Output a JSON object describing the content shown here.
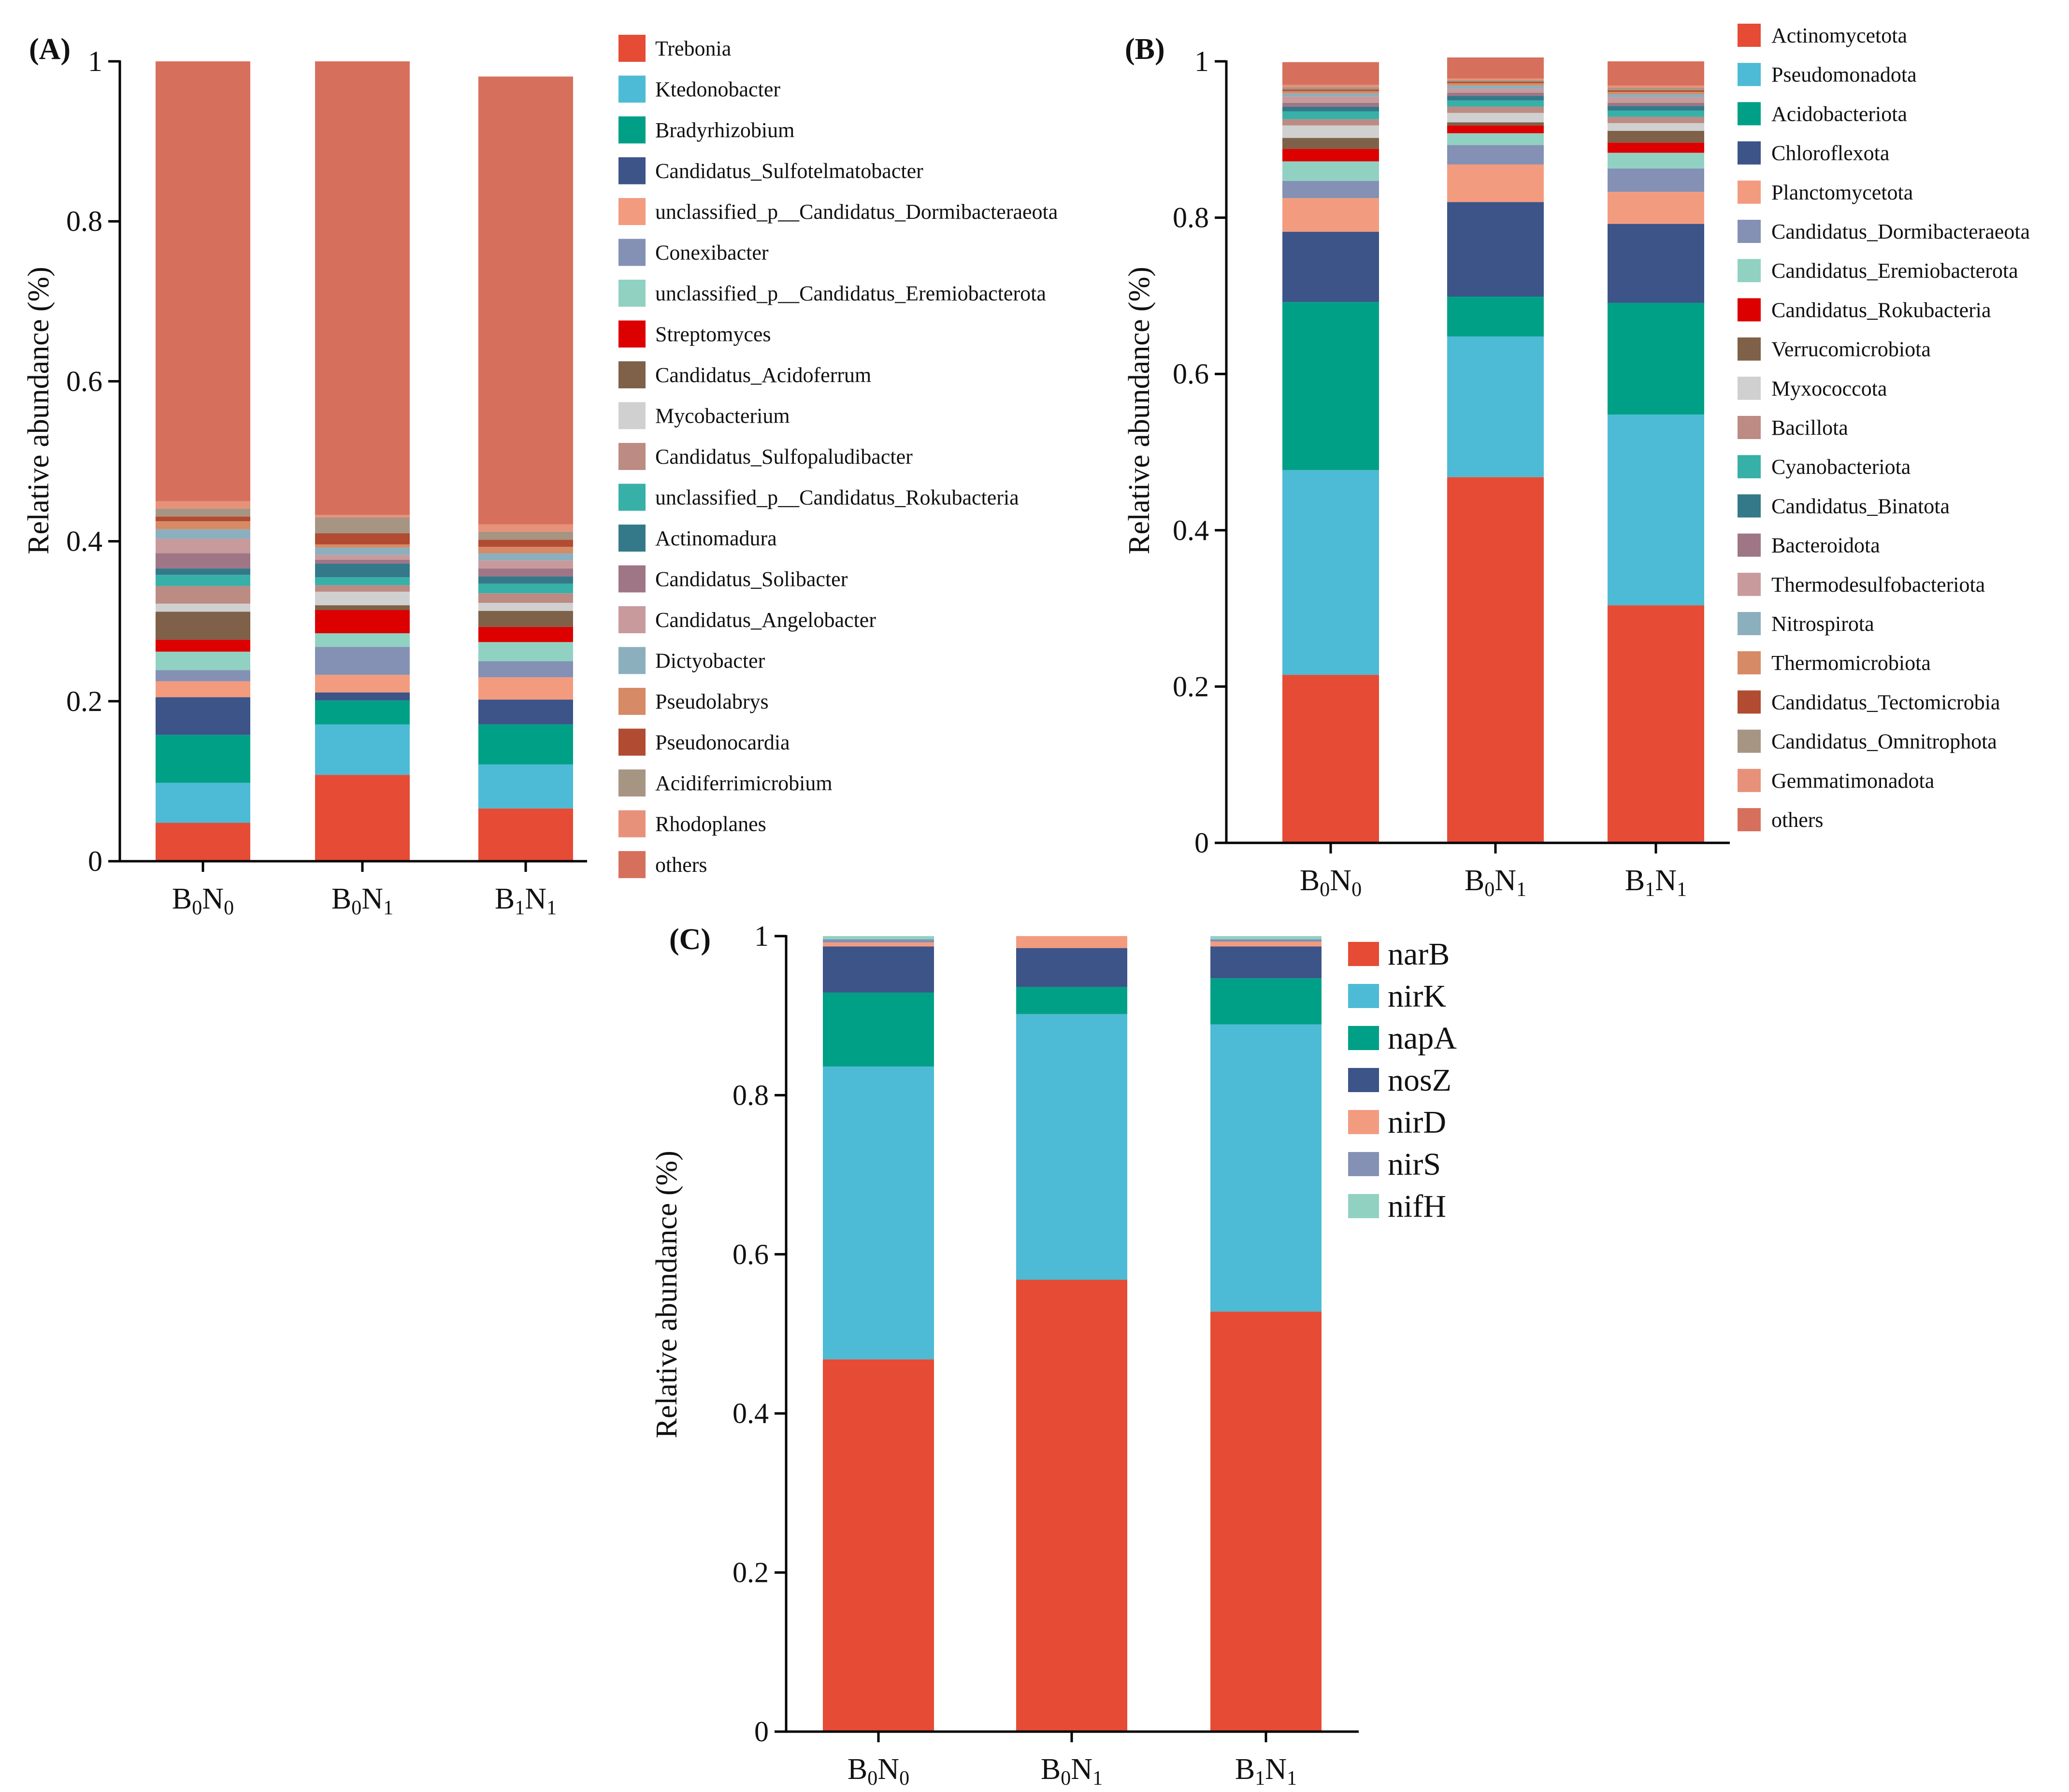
{
  "chart_data": [
    {
      "panel": "(A)",
      "type": "bar",
      "stacked": true,
      "ylabel": "Relative abundance (%)",
      "ylim": [
        0,
        1
      ],
      "yticks": [
        "0",
        "0.2",
        "0.4",
        "0.6",
        "0.8",
        "1"
      ],
      "categories": [
        {
          "base": "B",
          "sub1": "0",
          "mid": "N",
          "sub2": "0"
        },
        {
          "base": "B",
          "sub1": "0",
          "mid": "N",
          "sub2": "1"
        },
        {
          "base": "B",
          "sub1": "1",
          "mid": "N",
          "sub2": "1"
        }
      ],
      "series": [
        {
          "name": "Trebonia",
          "color": "#E64B35",
          "values": [
            0.048,
            0.108,
            0.066
          ]
        },
        {
          "name": "Ktedonobacter",
          "color": "#4DBBD5",
          "values": [
            0.05,
            0.063,
            0.055
          ]
        },
        {
          "name": "Bradyrhizobium",
          "color": "#00A087",
          "values": [
            0.06,
            0.03,
            0.05
          ]
        },
        {
          "name": "Candidatus_Sulfotelmatobacter",
          "color": "#3C5488",
          "values": [
            0.047,
            0.01,
            0.031
          ]
        },
        {
          "name": "unclassified_p__Candidatus_Dormibacteraeota",
          "color": "#F39B7F",
          "values": [
            0.02,
            0.022,
            0.028
          ]
        },
        {
          "name": "Conexibacter",
          "color": "#8491B4",
          "values": [
            0.014,
            0.035,
            0.02
          ]
        },
        {
          "name": "unclassified_p__Candidatus_Eremiobacterota",
          "color": "#91D1C2",
          "values": [
            0.023,
            0.017,
            0.024
          ]
        },
        {
          "name": "Streptomyces",
          "color": "#DC0000",
          "values": [
            0.015,
            0.029,
            0.019
          ]
        },
        {
          "name": "Candidatus_Acidoferrum",
          "color": "#7E6148",
          "values": [
            0.035,
            0.006,
            0.02
          ]
        },
        {
          "name": "Mycobacterium",
          "color": "#D0D0D0",
          "values": [
            0.01,
            0.017,
            0.01
          ]
        },
        {
          "name": "Candidatus_Sulfopaludibacter",
          "color": "#BC8B83",
          "values": [
            0.022,
            0.008,
            0.012
          ]
        },
        {
          "name": "unclassified_p__Candidatus_Rokubacteria",
          "color": "#37B0A8",
          "values": [
            0.014,
            0.01,
            0.012
          ]
        },
        {
          "name": "Actinomadura",
          "color": "#34798A",
          "values": [
            0.008,
            0.017,
            0.009
          ]
        },
        {
          "name": "Candidatus_Solibacter",
          "color": "#9E7686",
          "values": [
            0.019,
            0.005,
            0.01
          ]
        },
        {
          "name": "Candidatus_Angelobacter",
          "color": "#C99A9C",
          "values": [
            0.018,
            0.006,
            0.01
          ]
        },
        {
          "name": "Dictyobacter",
          "color": "#8CAFBE",
          "values": [
            0.012,
            0.009,
            0.009
          ]
        },
        {
          "name": "Pseudolabrys",
          "color": "#D68A65",
          "values": [
            0.01,
            0.004,
            0.008
          ]
        },
        {
          "name": "Pseudonocardia",
          "color": "#B14C32",
          "values": [
            0.006,
            0.014,
            0.009
          ]
        },
        {
          "name": "Acidiferrimicrobium",
          "color": "#A79584",
          "values": [
            0.01,
            0.02,
            0.01
          ]
        },
        {
          "name": "Rhodoplanes",
          "color": "#E8917A",
          "values": [
            0.009,
            0.003,
            0.009
          ]
        },
        {
          "name": "others",
          "color": "#D6705D",
          "values": [
            0.55,
            0.567,
            0.56
          ]
        }
      ]
    },
    {
      "panel": "(B)",
      "type": "bar",
      "stacked": true,
      "ylabel": "Relative abundance (%)",
      "ylim": [
        0,
        1
      ],
      "yticks": [
        "0",
        "0.2",
        "0.4",
        "0.6",
        "0.8",
        "1"
      ],
      "categories": [
        {
          "base": "B",
          "sub1": "0",
          "mid": "N",
          "sub2": "0"
        },
        {
          "base": "B",
          "sub1": "0",
          "mid": "N",
          "sub2": "1"
        },
        {
          "base": "B",
          "sub1": "1",
          "mid": "N",
          "sub2": "1"
        }
      ],
      "series": [
        {
          "name": "Actinomycetota",
          "color": "#E64B35",
          "values": [
            0.215,
            0.468,
            0.304
          ]
        },
        {
          "name": "Pseudomonadota",
          "color": "#4DBBD5",
          "values": [
            0.262,
            0.18,
            0.244
          ]
        },
        {
          "name": "Acidobacteriota",
          "color": "#00A087",
          "values": [
            0.215,
            0.051,
            0.143
          ]
        },
        {
          "name": "Chloroflexota",
          "color": "#3C5488",
          "values": [
            0.09,
            0.121,
            0.101
          ]
        },
        {
          "name": "Planctomycetota",
          "color": "#F39B7F",
          "values": [
            0.043,
            0.048,
            0.041
          ]
        },
        {
          "name": "Candidatus_Dormibacteraeota",
          "color": "#8491B4",
          "values": [
            0.022,
            0.025,
            0.03
          ]
        },
        {
          "name": "Candidatus_Eremiobacterota",
          "color": "#91D1C2",
          "values": [
            0.025,
            0.015,
            0.02
          ]
        },
        {
          "name": "Candidatus_Rokubacteria",
          "color": "#DC0000",
          "values": [
            0.016,
            0.01,
            0.013
          ]
        },
        {
          "name": "Verrucomicrobiota",
          "color": "#7E6148",
          "values": [
            0.014,
            0.004,
            0.015
          ]
        },
        {
          "name": "Myxococcota",
          "color": "#D0D0D0",
          "values": [
            0.016,
            0.012,
            0.01
          ]
        },
        {
          "name": "Bacillota",
          "color": "#BC8B83",
          "values": [
            0.008,
            0.008,
            0.008
          ]
        },
        {
          "name": "Cyanobacteriota",
          "color": "#37B0A8",
          "values": [
            0.01,
            0.008,
            0.008
          ]
        },
        {
          "name": "Candidatus_Binatota",
          "color": "#34798A",
          "values": [
            0.006,
            0.006,
            0.006
          ]
        },
        {
          "name": "Bacteroidota",
          "color": "#9E7686",
          "values": [
            0.005,
            0.004,
            0.004
          ]
        },
        {
          "name": "Thermodesulfobacteriota",
          "color": "#C99A9C",
          "values": [
            0.008,
            0.005,
            0.007
          ]
        },
        {
          "name": "Nitrospirota",
          "color": "#8CAFBE",
          "values": [
            0.004,
            0.004,
            0.004
          ]
        },
        {
          "name": "Thermomicrobiota",
          "color": "#D68A65",
          "values": [
            0.003,
            0.003,
            0.003
          ]
        },
        {
          "name": "Candidatus_Tectomicrobia",
          "color": "#B14C32",
          "values": [
            0.002,
            0.002,
            0.002
          ]
        },
        {
          "name": "Candidatus_Omnitrophota",
          "color": "#A79584",
          "values": [
            0.003,
            0.002,
            0.003
          ]
        },
        {
          "name": "Gemmatimonadota",
          "color": "#E8917A",
          "values": [
            0.003,
            0.002,
            0.003
          ]
        },
        {
          "name": "others",
          "color": "#D6705D",
          "values": [
            0.029,
            0.027,
            0.031
          ]
        }
      ]
    },
    {
      "panel": "(C)",
      "type": "bar",
      "stacked": true,
      "ylabel": "Relative abundance (%)",
      "ylim": [
        0,
        1
      ],
      "yticks": [
        "0",
        "0.2",
        "0.4",
        "0.6",
        "0.8",
        "1"
      ],
      "categories": [
        {
          "base": "B",
          "sub1": "0",
          "mid": "N",
          "sub2": "0"
        },
        {
          "base": "B",
          "sub1": "0",
          "mid": "N",
          "sub2": "1"
        },
        {
          "base": "B",
          "sub1": "1",
          "mid": "N",
          "sub2": "1"
        }
      ],
      "series": [
        {
          "name": "narB",
          "color": "#E64B35",
          "values": [
            0.468,
            0.568,
            0.528
          ]
        },
        {
          "name": "nirK",
          "color": "#4DBBD5",
          "values": [
            0.368,
            0.334,
            0.361
          ]
        },
        {
          "name": "napA",
          "color": "#00A087",
          "values": [
            0.093,
            0.034,
            0.058
          ]
        },
        {
          "name": "nosZ",
          "color": "#3C5488",
          "values": [
            0.058,
            0.049,
            0.04
          ]
        },
        {
          "name": "nirD",
          "color": "#F39B7F",
          "values": [
            0.005,
            0.015,
            0.006
          ]
        },
        {
          "name": "nirS",
          "color": "#8491B4",
          "values": [
            0.004,
            0.0,
            0.003
          ]
        },
        {
          "name": "nifH",
          "color": "#91D1C2",
          "values": [
            0.004,
            0.0,
            0.004
          ]
        }
      ]
    }
  ]
}
